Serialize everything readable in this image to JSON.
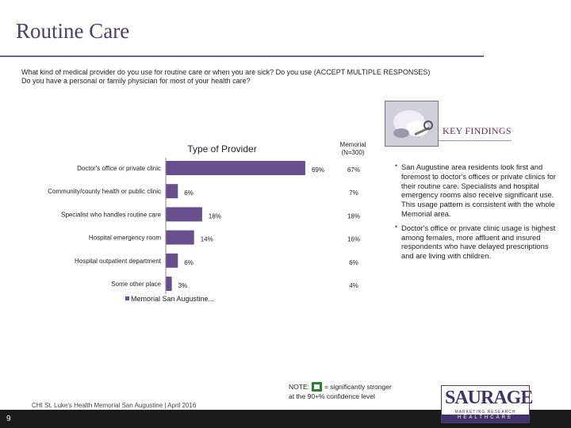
{
  "page": {
    "title": "Routine Care",
    "question_line1": "What kind of medical provider do you use for routine care or when you are sick? Do you use (ACCEPT MULTIPLE RESPONSES)",
    "question_line2": "Do you have a personal or family physician for most of your health care?",
    "key_findings_label": "KEY FINDINGS",
    "memorial_header": "Memorial (N=300)",
    "memorial_values": [
      "67%",
      "7%",
      "18%",
      "16%",
      "6%",
      "4%"
    ],
    "findings": [
      "San Augustine area residents look first and foremost to doctor's offices or private clinics for their routine care. Specialists and hospital emergency rooms also receive significant use. This usage pattern is consistent with the whole Memorial area.",
      "Doctor's office or private clinic usage is highest among females, more affluent and insured respondents who have delayed prescriptions and are living with children."
    ],
    "note_prefix": "NOTE:",
    "note_suffix": "= significantly stronger",
    "note_line2": "at the 90+% confidence level",
    "footer": "CHI St. Luke's Health Memorial San Augustine | April 2016",
    "page_number": "9",
    "logo_text": "SAURAGE",
    "logo_sub": "MARKETING RESEARCH",
    "logo_band": "HEALTHCARE"
  },
  "chart_data": {
    "type": "bar",
    "orientation": "horizontal",
    "title": "Type of Provider",
    "categories": [
      "Doctor's office or private clinic",
      "Community/county health or public clinic",
      "Specialist who handles routine care",
      "Hospital emergency room",
      "Hospital outpatient department",
      "Some other place"
    ],
    "series": [
      {
        "name": "Memorial San Augustine...",
        "values": [
          69,
          6,
          18,
          14,
          6,
          3
        ],
        "color": "#6a4f8e"
      }
    ],
    "value_labels": [
      "69%",
      "6%",
      "18%",
      "14%",
      "6%",
      "3%"
    ],
    "xlim": [
      0,
      100
    ],
    "grid": false,
    "legend": "bottom-left"
  }
}
